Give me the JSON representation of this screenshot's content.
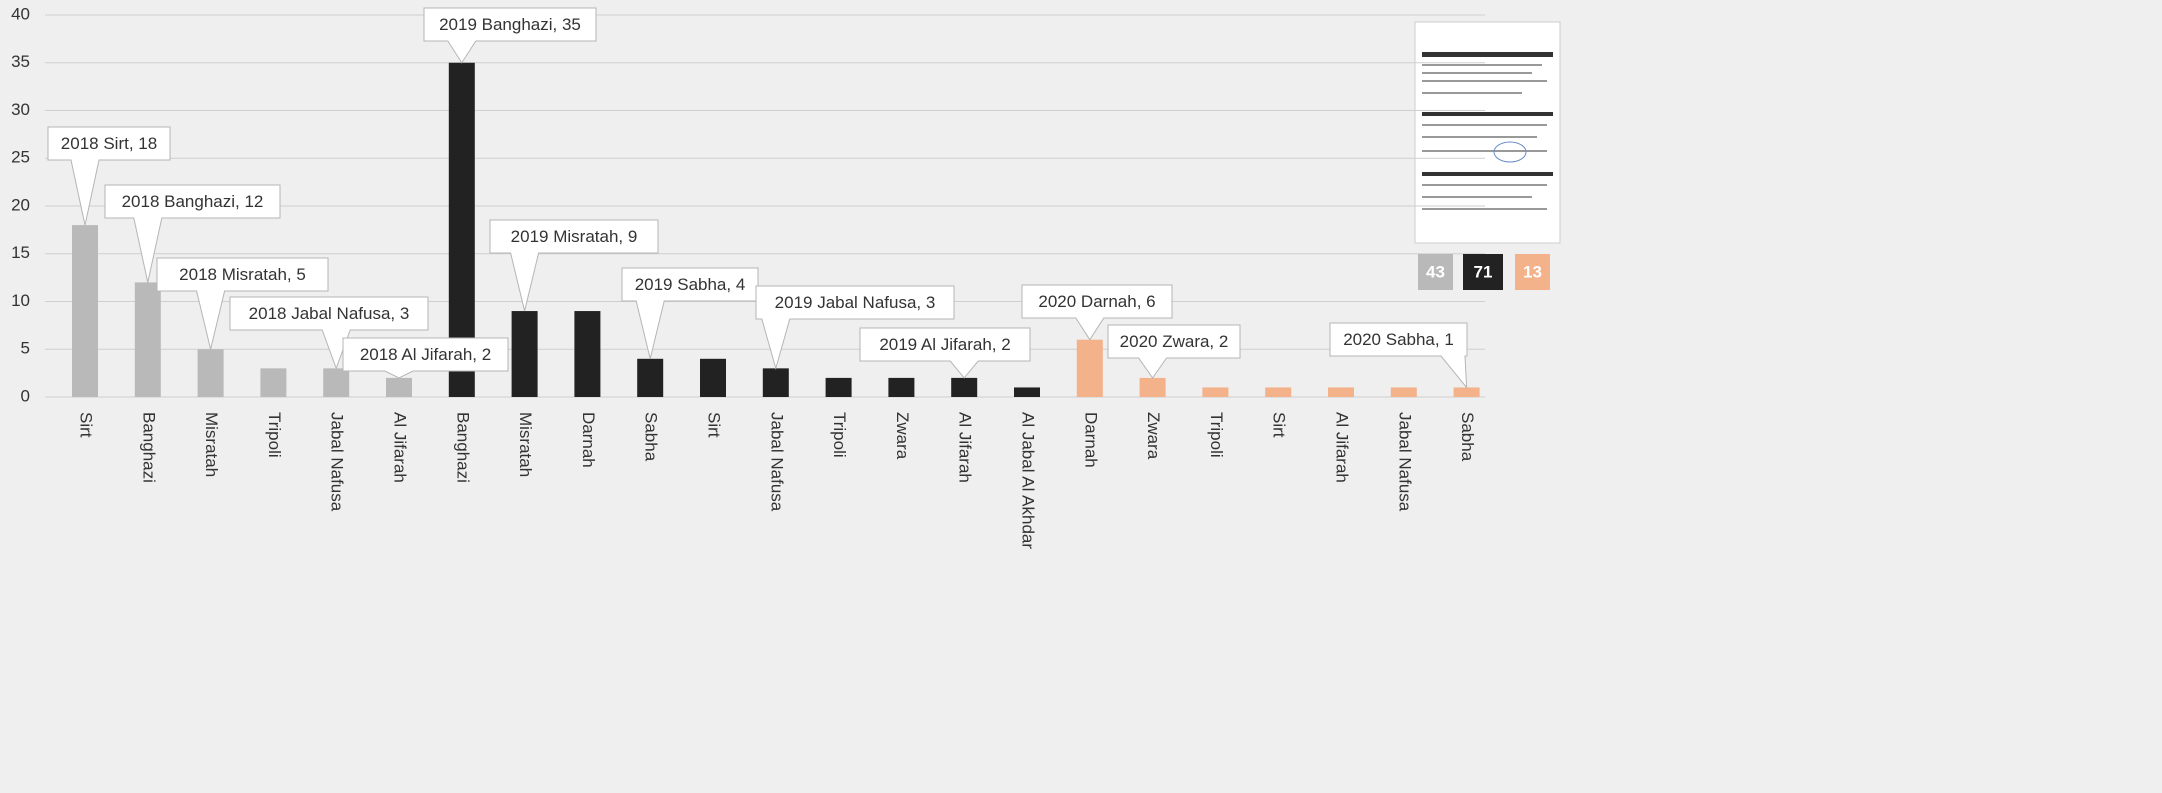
{
  "chart_data": {
    "type": "bar",
    "ylim": [
      0,
      40
    ],
    "yticks": [
      0,
      5,
      10,
      15,
      20,
      25,
      30,
      35,
      40
    ],
    "grid": true,
    "series": [
      {
        "color": "#b9b9b9",
        "total": 43,
        "categories": [
          "Sirt",
          "Banghazi",
          "Misratah",
          "Tripoli",
          "Jabal Nafusa",
          "Al Jifarah"
        ],
        "values": [
          18,
          12,
          5,
          3,
          3,
          2
        ],
        "value_labels": [
          "2018 Sirt, 18",
          "2018 Banghazi, 12",
          "2018 Misratah, 5",
          null,
          "2018 Jabal Nafusa, 3",
          "2018 Al Jifarah, 2"
        ]
      },
      {
        "color": "#222222",
        "total": 71,
        "categories": [
          "Banghazi",
          "Misratah",
          "Darnah",
          "Sabha",
          "Sirt",
          "Jabal Nafusa",
          "Tripoli",
          "Zwara",
          "Al Jifarah",
          "Al Jabal Al Akhdar"
        ],
        "values": [
          35,
          9,
          9,
          4,
          4,
          3,
          2,
          2,
          2,
          1
        ],
        "value_labels": [
          "2019 Banghazi, 35",
          "2019 Misratah, 9",
          null,
          "2019 Sabha, 4",
          null,
          "2019 Jabal Nafusa, 3",
          null,
          null,
          "2019 Al Jifarah, 2",
          null
        ]
      },
      {
        "color": "#f4b28a",
        "total": 13,
        "categories": [
          "Darnah",
          "Zwara",
          "Tripoli",
          "Sirt",
          "Al Jifarah",
          "Jabal Nafusa",
          "Sabha"
        ],
        "values": [
          6,
          2,
          1,
          1,
          1,
          1,
          1
        ],
        "value_labels": [
          "2020 Darnah, 6",
          "2020 Zwara, 2",
          null,
          null,
          null,
          null,
          "2020 Sabha, 1"
        ]
      }
    ]
  }
}
